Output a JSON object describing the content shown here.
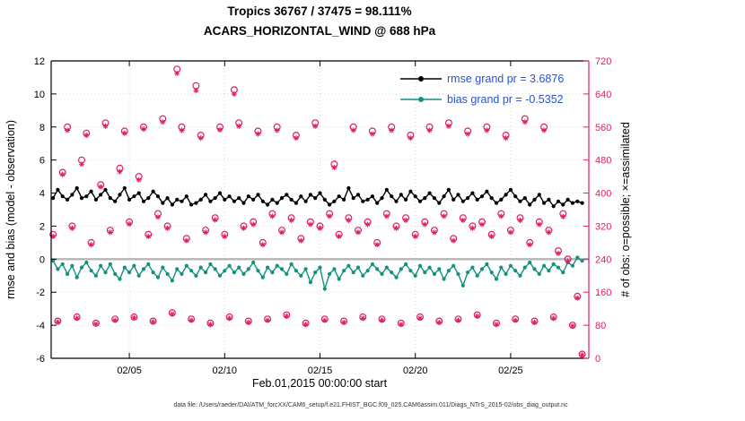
{
  "colors": {
    "obs_pink": "#e11d62",
    "bias_teal": "#12917f",
    "rmse_black": "#000000",
    "legend_text_blue": "#2653d9",
    "zero_line_gray": "#b5b5b5",
    "grid_gray": "#d9d9d9",
    "spine_black": "#000000"
  },
  "footer": "data file: /Users/raeder/DAI/ATM_forcXX/CAM6_setup/f.e21.FHIST_BGC.f09_025.CAM6assim.011/Diags_NTrS_2015-02/obs_diag_output.nc",
  "chart_data": {
    "type": "line",
    "title": "Tropics 36767 / 37475 = 98.111%",
    "subtitle": "ACARS_HORIZONTAL_WIND @ 688 hPa",
    "x_axis": {
      "label": "Feb.01,2015 00:00:00 start",
      "range": [
        0.9,
        29.1
      ],
      "ticks": [
        5,
        10,
        15,
        20,
        25
      ],
      "tick_labels": [
        "02/05",
        "02/10",
        "02/15",
        "02/20",
        "02/25"
      ]
    },
    "y_left": {
      "label": "rmse and bias (model - observation)",
      "range": [
        -6,
        12
      ],
      "ticks": [
        -6,
        -4,
        -2,
        0,
        2,
        4,
        6,
        8,
        10,
        12
      ]
    },
    "y_right": {
      "label": "# of obs: o=possible; ×=assimilated",
      "range": [
        0,
        720
      ],
      "ticks": [
        0,
        80,
        160,
        240,
        320,
        400,
        480,
        560,
        640,
        720
      ]
    },
    "grid": true,
    "legend_position": "top-right-inside",
    "n": 112,
    "x_start": 1.0,
    "x_step": 0.25,
    "series": [
      {
        "name": "rmse",
        "legend": "rmse grand pr = 3.6876",
        "grand_value": 3.6876,
        "axis": "left",
        "marker": "point",
        "color": "#000000",
        "values": [
          3.7,
          4.2,
          3.8,
          3.6,
          3.9,
          4.3,
          3.7,
          3.8,
          4.1,
          3.6,
          3.9,
          4.2,
          3.7,
          3.5,
          3.9,
          4.3,
          3.6,
          3.8,
          4.0,
          3.5,
          3.7,
          4.1,
          3.8,
          3.4,
          3.7,
          3.3,
          3.6,
          3.5,
          3.8,
          3.3,
          3.4,
          3.6,
          3.9,
          3.5,
          3.7,
          4.0,
          3.6,
          3.8,
          3.5,
          3.7,
          3.4,
          3.8,
          3.6,
          3.9,
          3.5,
          3.3,
          3.6,
          3.4,
          3.7,
          3.9,
          3.6,
          3.4,
          3.8,
          3.5,
          3.9,
          3.7,
          4.0,
          3.6,
          3.3,
          3.5,
          3.8,
          3.6,
          4.3,
          3.7,
          3.9,
          3.5,
          3.6,
          3.8,
          3.4,
          3.7,
          4.2,
          3.8,
          3.5,
          3.9,
          3.6,
          4.1,
          3.8,
          3.5,
          3.7,
          4.0,
          3.7,
          3.4,
          3.8,
          4.2,
          3.6,
          3.9,
          3.5,
          3.7,
          4.0,
          3.6,
          3.8,
          4.1,
          3.7,
          3.4,
          3.6,
          3.9,
          4.2,
          3.8,
          3.5,
          3.7,
          3.3,
          3.6,
          3.9,
          3.4,
          3.6,
          3.2,
          3.5,
          3.3,
          3.6,
          3.4,
          3.5,
          3.4
        ]
      },
      {
        "name": "bias",
        "legend": "bias grand pr = -0.5352",
        "grand_value": -0.5352,
        "axis": "left",
        "marker": "point",
        "color": "#12917f",
        "values": [
          -0.1,
          -0.6,
          -0.3,
          -0.9,
          -0.4,
          -1.1,
          -0.5,
          -0.2,
          -0.7,
          -1.0,
          -0.4,
          -0.8,
          -0.3,
          -0.9,
          -1.2,
          -0.5,
          -0.8,
          -0.4,
          -1.0,
          -0.6,
          -0.3,
          -0.8,
          -1.1,
          -0.5,
          -0.9,
          -1.3,
          -0.6,
          -0.9,
          -0.4,
          -0.7,
          -1.0,
          -0.5,
          -0.8,
          -0.3,
          -0.6,
          -1.0,
          -0.7,
          -0.4,
          -0.8,
          -0.5,
          -0.9,
          -0.6,
          -0.2,
          -0.7,
          -1.1,
          -0.5,
          -0.8,
          -0.4,
          -0.6,
          -0.9,
          -0.3,
          -0.7,
          -1.0,
          -0.6,
          -1.4,
          -0.8,
          -0.5,
          -1.8,
          -0.9,
          -0.6,
          -1.2,
          -0.7,
          -0.4,
          -0.8,
          -0.5,
          -1.0,
          -0.7,
          -0.3,
          -0.6,
          -0.9,
          -0.5,
          -0.8,
          -1.1,
          -0.6,
          -0.3,
          -0.7,
          -1.0,
          -0.4,
          -0.8,
          -0.5,
          -0.9,
          -0.6,
          -1.2,
          -0.7,
          -0.4,
          -0.9,
          -1.6,
          -0.8,
          -0.5,
          -1.0,
          -0.6,
          -0.3,
          -0.8,
          -1.2,
          -0.5,
          -0.9,
          -0.4,
          -0.7,
          -1.0,
          -0.5,
          -0.2,
          -0.6,
          -0.9,
          -0.4,
          -0.7,
          -0.3,
          -0.5,
          -0.8,
          -0.2,
          -0.4,
          0.1,
          -0.1
        ]
      },
      {
        "name": "obs_possible",
        "legend": "o=possible",
        "axis": "right",
        "marker": "o",
        "color": "#e11d62",
        "values": [
          300,
          90,
          450,
          560,
          320,
          100,
          480,
          545,
          280,
          85,
          420,
          570,
          310,
          95,
          460,
          550,
          330,
          100,
          440,
          560,
          300,
          90,
          350,
          580,
          320,
          110,
          700,
          560,
          290,
          95,
          660,
          540,
          310,
          85,
          340,
          560,
          300,
          100,
          650,
          570,
          320,
          90,
          330,
          550,
          280,
          95,
          350,
          560,
          310,
          105,
          340,
          540,
          290,
          85,
          330,
          570,
          320,
          95,
          350,
          470,
          300,
          90,
          340,
          560,
          310,
          100,
          330,
          550,
          280,
          95,
          350,
          560,
          320,
          85,
          340,
          540,
          300,
          100,
          330,
          560,
          310,
          90,
          350,
          570,
          290,
          95,
          340,
          550,
          320,
          105,
          330,
          560,
          300,
          85,
          350,
          540,
          310,
          95,
          340,
          580,
          280,
          90,
          330,
          560,
          310,
          100,
          260,
          350,
          240,
          80,
          150,
          10
        ]
      },
      {
        "name": "obs_assimilated",
        "legend": "×=assimilated",
        "axis": "right",
        "marker": "star",
        "color": "#e11d62",
        "values": [
          295,
          88,
          445,
          552,
          315,
          97,
          470,
          540,
          275,
          83,
          415,
          562,
          305,
          92,
          452,
          545,
          325,
          98,
          432,
          555,
          295,
          88,
          342,
          572,
          315,
          107,
          690,
          552,
          285,
          92,
          648,
          533,
          305,
          82,
          335,
          553,
          295,
          97,
          640,
          562,
          315,
          87,
          324,
          543,
          275,
          92,
          344,
          552,
          305,
          102,
          334,
          533,
          285,
          82,
          324,
          562,
          315,
          92,
          344,
          462,
          295,
          87,
          334,
          552,
          305,
          97,
          324,
          543,
          275,
          92,
          344,
          552,
          315,
          82,
          334,
          533,
          295,
          97,
          324,
          552,
          305,
          87,
          344,
          562,
          285,
          92,
          334,
          543,
          315,
          102,
          324,
          552,
          295,
          82,
          344,
          533,
          305,
          92,
          334,
          572,
          275,
          87,
          324,
          552,
          305,
          97,
          254,
          343,
          235,
          78,
          146,
          8
        ]
      }
    ]
  }
}
